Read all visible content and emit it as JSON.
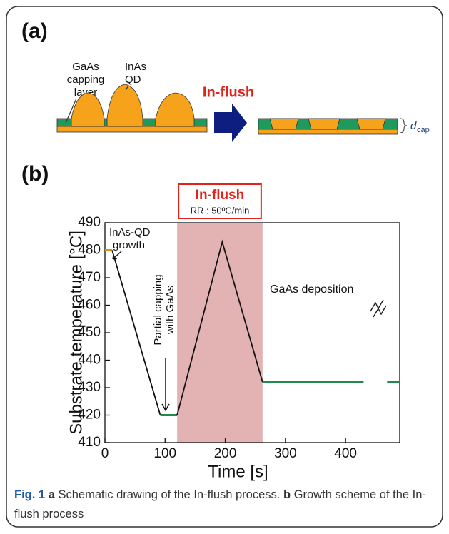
{
  "panel_a": {
    "label": "(a)",
    "capping_label": [
      "GaAs",
      "capping",
      "layer"
    ],
    "qd_label": [
      "InAs",
      "QD"
    ],
    "process": "In-flush",
    "dcap": "d",
    "dcap_sub": "cap"
  },
  "chart_data": {
    "type": "line",
    "panel_label": "(b)",
    "x_label": "Time [s]",
    "y_label": "Substrate temperature [°C]",
    "xlim": [
      0,
      490
    ],
    "ylim": [
      410,
      490
    ],
    "xticks": [
      0,
      100,
      200,
      300,
      400
    ],
    "yticks": [
      410,
      420,
      430,
      440,
      450,
      460,
      470,
      480,
      490
    ],
    "highlight": {
      "xlim": [
        120,
        262
      ],
      "color": "#e3b2b2",
      "label": "In-flush",
      "sublabel": "RR : 50ºC/min"
    },
    "series": [
      {
        "color": "#f08c00",
        "x": [
          0,
          12
        ],
        "values": [
          480,
          480
        ]
      },
      {
        "color": "#111111",
        "x": [
          12,
          92
        ],
        "values": [
          480,
          420
        ]
      },
      {
        "color": "#1f8a4c",
        "x": [
          92,
          120
        ],
        "values": [
          420,
          420
        ]
      },
      {
        "color": "#111111",
        "x": [
          120,
          195,
          262
        ],
        "values": [
          420,
          483,
          432
        ]
      },
      {
        "color": "#1f8a4c",
        "x": [
          262,
          430
        ],
        "values": [
          432,
          432
        ]
      },
      {
        "color": "#1f8a4c",
        "x": [
          469,
          490
        ],
        "values": [
          432,
          432
        ]
      }
    ],
    "annotations": [
      {
        "lines": [
          "InAs-QD",
          "growth"
        ]
      },
      {
        "lines": [
          "Partial capping",
          "with GaAs"
        ]
      },
      {
        "lines": [
          "GaAs deposition"
        ]
      }
    ]
  },
  "caption": {
    "fig": "Fig. 1",
    "a": "a",
    "a_text": "Schematic drawing of the In-flush process.",
    "b": "b",
    "b_text": "Growth scheme of the In-flush process"
  }
}
